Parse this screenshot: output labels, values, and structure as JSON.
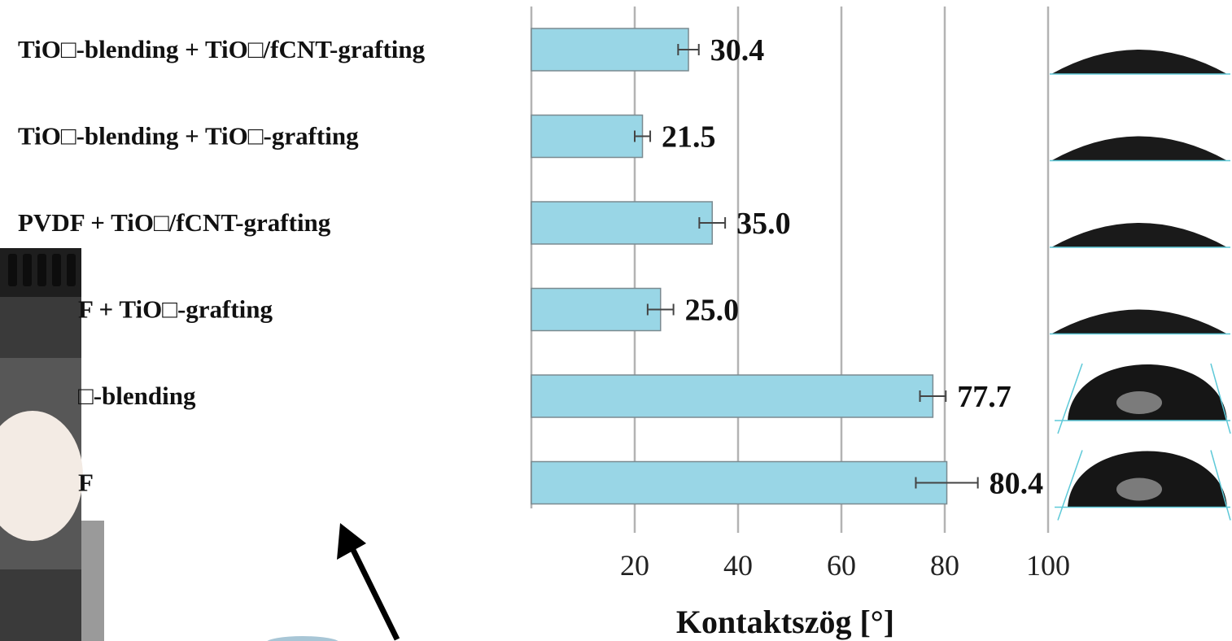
{
  "chart_data": {
    "type": "bar",
    "orientation": "horizontal",
    "categories": [
      "TiO□-blending + TiO□/fCNT-grafting",
      "TiO□-blending + TiO□-grafting",
      "PVDF + TiO□/fCNT-grafting",
      "F + TiO□-grafting",
      "□-blending",
      "F"
    ],
    "values": [
      30.4,
      21.5,
      35.0,
      25.0,
      77.7,
      80.4
    ],
    "value_labels": [
      "30.4",
      "21.5",
      "35.0",
      "25.0",
      "77.7",
      "80.4"
    ],
    "errors": [
      2,
      1.5,
      2.5,
      2.5,
      2.5,
      6
    ],
    "xlim": [
      0,
      100
    ],
    "xticks": [
      20,
      40,
      60,
      80,
      100
    ],
    "xtick_labels": [
      "20",
      "40",
      "60",
      "80",
      "100"
    ],
    "xlabel": "Kontaktszög [°]",
    "grid": "vertical",
    "colors": {
      "bar": "#99d6e6",
      "bar_edge": "#7a8a90",
      "grid": "#b3b3b3",
      "text": "#111111"
    }
  },
  "side_images": [
    {
      "name": "droplet-image",
      "shape": "flat",
      "dark": "#1a1a1a"
    },
    {
      "name": "droplet-image",
      "shape": "flat",
      "dark": "#1a1a1a"
    },
    {
      "name": "droplet-image",
      "shape": "flat",
      "dark": "#1a1a1a"
    },
    {
      "name": "droplet-image",
      "shape": "flat",
      "dark": "#1a1a1a"
    },
    {
      "name": "droplet-image",
      "shape": "dome",
      "dark": "#161616"
    },
    {
      "name": "droplet-image",
      "shape": "dome",
      "dark": "#161616"
    }
  ],
  "photo": {
    "name": "instrument-photo",
    "arrow": "arrow-icon"
  }
}
